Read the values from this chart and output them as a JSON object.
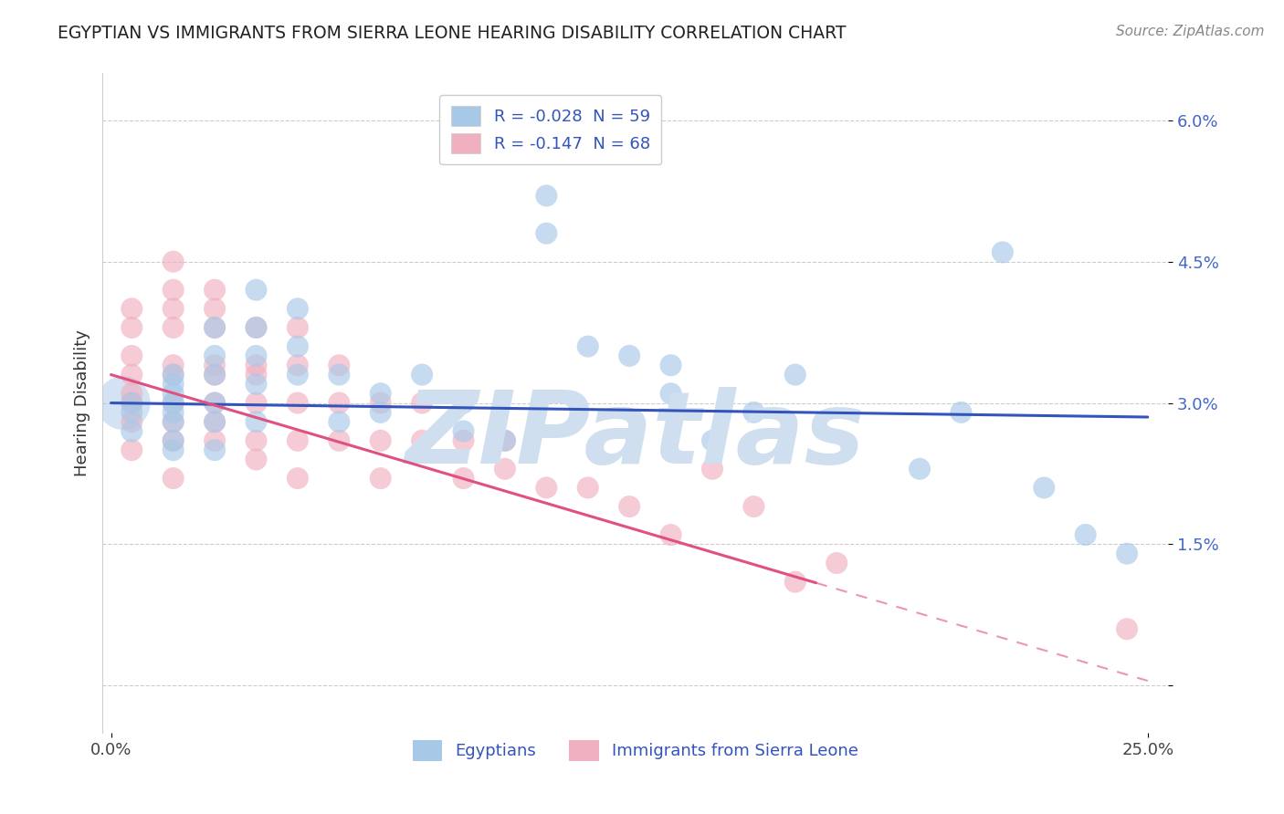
{
  "title": "EGYPTIAN VS IMMIGRANTS FROM SIERRA LEONE HEARING DISABILITY CORRELATION CHART",
  "source": "Source: ZipAtlas.com",
  "ylabel": "Hearing Disability",
  "y_ticks": [
    0.0,
    0.015,
    0.03,
    0.045,
    0.06
  ],
  "y_tick_labels": [
    "",
    "1.5%",
    "3.0%",
    "4.5%",
    "6.0%"
  ],
  "xlim": [
    -0.002,
    0.255
  ],
  "ylim": [
    -0.005,
    0.065
  ],
  "legend1_label": "R = -0.028  N = 59",
  "legend2_label": "R = -0.147  N = 68",
  "blue_color": "#a8c8e8",
  "pink_color": "#f0b0c0",
  "trend_blue": "#3355bb",
  "trend_pink": "#e05080",
  "watermark": "ZIPatlas",
  "watermark_color": "#d0dff0",
  "background_color": "#ffffff",
  "grid_color": "#cccccc",
  "egyptians_x": [
    0.005,
    0.005,
    0.005,
    0.015,
    0.015,
    0.015,
    0.015,
    0.015,
    0.015,
    0.015,
    0.015,
    0.025,
    0.025,
    0.025,
    0.025,
    0.025,
    0.025,
    0.035,
    0.035,
    0.035,
    0.035,
    0.035,
    0.045,
    0.045,
    0.045,
    0.055,
    0.055,
    0.065,
    0.065,
    0.075,
    0.085,
    0.085,
    0.095,
    0.105,
    0.105,
    0.115,
    0.125,
    0.135,
    0.135,
    0.145,
    0.155,
    0.165,
    0.195,
    0.205,
    0.215,
    0.225,
    0.235,
    0.245
  ],
  "egyptians_y": [
    0.03,
    0.029,
    0.027,
    0.031,
    0.029,
    0.026,
    0.033,
    0.028,
    0.025,
    0.032,
    0.03,
    0.038,
    0.035,
    0.033,
    0.03,
    0.028,
    0.025,
    0.042,
    0.038,
    0.035,
    0.032,
    0.028,
    0.04,
    0.036,
    0.033,
    0.033,
    0.028,
    0.031,
    0.029,
    0.033,
    0.027,
    0.03,
    0.026,
    0.052,
    0.048,
    0.036,
    0.035,
    0.031,
    0.034,
    0.026,
    0.029,
    0.033,
    0.023,
    0.029,
    0.046,
    0.021,
    0.016,
    0.014
  ],
  "sierraleone_x": [
    0.005,
    0.005,
    0.005,
    0.005,
    0.005,
    0.005,
    0.005,
    0.005,
    0.015,
    0.015,
    0.015,
    0.015,
    0.015,
    0.015,
    0.015,
    0.015,
    0.015,
    0.015,
    0.025,
    0.025,
    0.025,
    0.025,
    0.025,
    0.025,
    0.025,
    0.025,
    0.035,
    0.035,
    0.035,
    0.035,
    0.035,
    0.035,
    0.045,
    0.045,
    0.045,
    0.045,
    0.045,
    0.055,
    0.055,
    0.055,
    0.065,
    0.065,
    0.065,
    0.075,
    0.075,
    0.085,
    0.085,
    0.095,
    0.095,
    0.105,
    0.115,
    0.125,
    0.135,
    0.145,
    0.155,
    0.165,
    0.175,
    0.245
  ],
  "sierraleone_y": [
    0.031,
    0.028,
    0.025,
    0.033,
    0.03,
    0.035,
    0.04,
    0.038,
    0.042,
    0.038,
    0.034,
    0.03,
    0.026,
    0.033,
    0.04,
    0.045,
    0.028,
    0.022,
    0.038,
    0.034,
    0.03,
    0.026,
    0.033,
    0.04,
    0.042,
    0.028,
    0.034,
    0.03,
    0.026,
    0.033,
    0.038,
    0.024,
    0.03,
    0.026,
    0.034,
    0.022,
    0.038,
    0.03,
    0.026,
    0.034,
    0.026,
    0.03,
    0.022,
    0.026,
    0.03,
    0.026,
    0.022,
    0.023,
    0.026,
    0.021,
    0.021,
    0.019,
    0.016,
    0.023,
    0.019,
    0.011,
    0.013,
    0.006
  ],
  "blue_trend_x0": 0.0,
  "blue_trend_y0": 0.03,
  "blue_trend_x1": 0.25,
  "blue_trend_y1": 0.0285,
  "pink_trend_x0": 0.0,
  "pink_trend_y0": 0.033,
  "pink_trend_x1": 0.25,
  "pink_trend_y1": 0.0005,
  "pink_solid_until": 0.17
}
